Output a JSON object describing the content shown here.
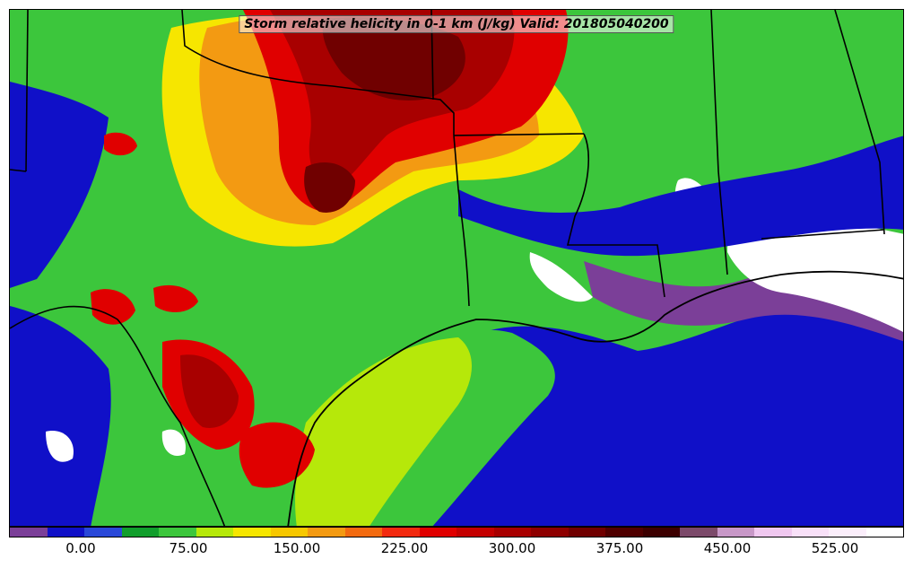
{
  "title": "Storm relative helicity in 0-1 km (J/kg) Valid: 201805040200",
  "colorbar": {
    "colors": [
      "#7b3f98",
      "#1010c8",
      "#2a48d8",
      "#119e2c",
      "#3cc63c",
      "#b6e80a",
      "#f6e600",
      "#f7c800",
      "#f39a12",
      "#f26a10",
      "#f22a10",
      "#e00000",
      "#c40000",
      "#a80000",
      "#8e0000",
      "#700000",
      "#500000",
      "#3c0000",
      "#7c4a6a",
      "#c898c8",
      "#f0c8f0",
      "#f8e0f8",
      "#fbeefb",
      "#ffffff"
    ],
    "tick_labels": [
      "0.00",
      "75.00",
      "150.00",
      "225.00",
      "300.00",
      "375.00",
      "450.00",
      "525.00"
    ]
  }
}
